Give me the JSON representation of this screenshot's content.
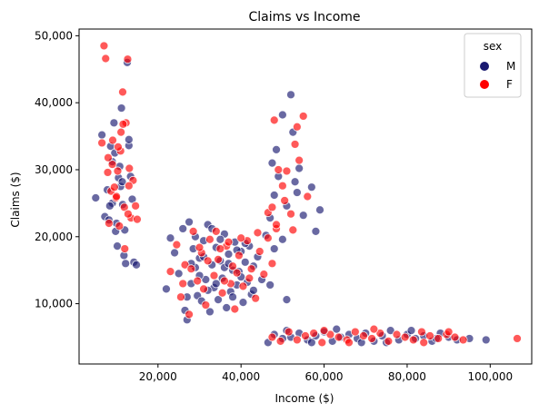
{
  "chart_data": {
    "type": "scatter",
    "title": "Claims vs Income",
    "xlabel": "Income ($)",
    "ylabel": "Claims ($)",
    "xlim": [
      1000,
      110000
    ],
    "ylim": [
      1000,
      51000
    ],
    "xticks": [
      20000,
      40000,
      60000,
      80000,
      100000
    ],
    "yticks": [
      10000,
      20000,
      30000,
      40000,
      50000
    ],
    "xtick_labels": [
      "20,000",
      "40,000",
      "60,000",
      "80,000",
      "100,000"
    ],
    "ytick_labels": [
      "10,000",
      "20,000",
      "30,000",
      "40,000",
      "50,000"
    ],
    "grid": false,
    "legend": {
      "title": "sex",
      "placement": "top-right"
    },
    "series": [
      {
        "name": "M",
        "color": "#191970",
        "points": [
          [
            5000,
            25800
          ],
          [
            6500,
            35200
          ],
          [
            7200,
            23000
          ],
          [
            7800,
            27000
          ],
          [
            8200,
            22500
          ],
          [
            8600,
            33500
          ],
          [
            9000,
            31200
          ],
          [
            9400,
            37000
          ],
          [
            9800,
            20800
          ],
          [
            10200,
            18600
          ],
          [
            10500,
            28800
          ],
          [
            10800,
            30500
          ],
          [
            11200,
            39200
          ],
          [
            11500,
            24800
          ],
          [
            11800,
            17200
          ],
          [
            12200,
            16000
          ],
          [
            12600,
            46000
          ],
          [
            13000,
            33600
          ],
          [
            13400,
            29000
          ],
          [
            13800,
            25600
          ],
          [
            14200,
            16200
          ],
          [
            14800,
            15800
          ],
          [
            9000,
            25000
          ],
          [
            10000,
            22000
          ],
          [
            11000,
            27500
          ],
          [
            12000,
            21000
          ],
          [
            13000,
            34500
          ],
          [
            9600,
            32500
          ],
          [
            11400,
            28200
          ],
          [
            8400,
            24600
          ],
          [
            22000,
            12200
          ],
          [
            23000,
            19800
          ],
          [
            24000,
            17600
          ],
          [
            25000,
            14500
          ],
          [
            26000,
            21200
          ],
          [
            26500,
            9000
          ],
          [
            27000,
            7600
          ],
          [
            27500,
            22200
          ],
          [
            28000,
            13000
          ],
          [
            28500,
            18200
          ],
          [
            29000,
            15400
          ],
          [
            29500,
            11200
          ],
          [
            30000,
            16800
          ],
          [
            30500,
            10400
          ],
          [
            31000,
            19400
          ],
          [
            31500,
            13600
          ],
          [
            32000,
            21800
          ],
          [
            32500,
            8800
          ],
          [
            33000,
            15800
          ],
          [
            33500,
            12400
          ],
          [
            34000,
            18400
          ],
          [
            34500,
            10600
          ],
          [
            35000,
            16400
          ],
          [
            35500,
            13800
          ],
          [
            36000,
            20400
          ],
          [
            36500,
            9400
          ],
          [
            37000,
            17400
          ],
          [
            37500,
            11800
          ],
          [
            38000,
            15000
          ],
          [
            38500,
            19200
          ],
          [
            39000,
            12800
          ],
          [
            39500,
            14800
          ],
          [
            40000,
            17800
          ],
          [
            40500,
            10200
          ],
          [
            41000,
            16200
          ],
          [
            41500,
            13200
          ],
          [
            42000,
            18600
          ],
          [
            42500,
            11400
          ],
          [
            43000,
            15600
          ],
          [
            44000,
            17000
          ],
          [
            45000,
            13600
          ],
          [
            46000,
            20200
          ],
          [
            47000,
            12800
          ],
          [
            48000,
            18200
          ],
          [
            33000,
            21200
          ],
          [
            35000,
            19600
          ],
          [
            30000,
            14200
          ],
          [
            36000,
            15400
          ],
          [
            38000,
            11000
          ],
          [
            31000,
            17000
          ],
          [
            34000,
            13000
          ],
          [
            37000,
            16000
          ],
          [
            39000,
            18000
          ],
          [
            32000,
            12000
          ],
          [
            40000,
            14000
          ],
          [
            28000,
            16000
          ],
          [
            43000,
            12000
          ],
          [
            29000,
            20000
          ],
          [
            41000,
            19000
          ],
          [
            27000,
            11000
          ],
          [
            46500,
            4200
          ],
          [
            48000,
            5400
          ],
          [
            50000,
            4800
          ],
          [
            52000,
            5000
          ],
          [
            54000,
            5600
          ],
          [
            56000,
            4600
          ],
          [
            58000,
            5200
          ],
          [
            60000,
            5800
          ],
          [
            62000,
            4400
          ],
          [
            64000,
            5000
          ],
          [
            66000,
            5400
          ],
          [
            68000,
            4800
          ],
          [
            70000,
            5600
          ],
          [
            72000,
            4400
          ],
          [
            74000,
            5200
          ],
          [
            76000,
            6000
          ],
          [
            78000,
            4600
          ],
          [
            80000,
            5400
          ],
          [
            82000,
            4800
          ],
          [
            84000,
            5200
          ],
          [
            86000,
            4400
          ],
          [
            88000,
            5600
          ],
          [
            90000,
            5000
          ],
          [
            92000,
            4600
          ],
          [
            95000,
            4800
          ],
          [
            99000,
            4600
          ],
          [
            51000,
            6000
          ],
          [
            57000,
            4200
          ],
          [
            63000,
            6200
          ],
          [
            69000,
            4200
          ],
          [
            75000,
            4200
          ],
          [
            81000,
            6000
          ],
          [
            87000,
            4800
          ],
          [
            47000,
            22800
          ],
          [
            48000,
            26200
          ],
          [
            49000,
            29000
          ],
          [
            50000,
            38200
          ],
          [
            51000,
            24600
          ],
          [
            52000,
            41200
          ],
          [
            53000,
            28200
          ],
          [
            54000,
            30200
          ],
          [
            55000,
            23200
          ],
          [
            57000,
            27400
          ],
          [
            58000,
            20800
          ],
          [
            59000,
            24000
          ],
          [
            51000,
            10600
          ],
          [
            50000,
            19600
          ],
          [
            48500,
            33000
          ],
          [
            52500,
            35600
          ],
          [
            53500,
            26600
          ],
          [
            47500,
            31000
          ]
        ]
      },
      {
        "name": "F",
        "color": "#ff0000",
        "points": [
          [
            6500,
            34000
          ],
          [
            7000,
            48500
          ],
          [
            7400,
            46600
          ],
          [
            7900,
            29600
          ],
          [
            8200,
            22000
          ],
          [
            8700,
            26800
          ],
          [
            9100,
            34400
          ],
          [
            9500,
            27400
          ],
          [
            9900,
            25800
          ],
          [
            10300,
            29800
          ],
          [
            10700,
            21600
          ],
          [
            11100,
            35600
          ],
          [
            11500,
            41600
          ],
          [
            11900,
            24400
          ],
          [
            12300,
            37000
          ],
          [
            12700,
            46500
          ],
          [
            13100,
            30200
          ],
          [
            13500,
            22800
          ],
          [
            14000,
            28400
          ],
          [
            14600,
            24600
          ],
          [
            15000,
            22600
          ],
          [
            9000,
            30800
          ],
          [
            10000,
            26000
          ],
          [
            11000,
            32800
          ],
          [
            12000,
            18200
          ],
          [
            13000,
            27600
          ],
          [
            8000,
            31800
          ],
          [
            11600,
            36800
          ],
          [
            10400,
            33400
          ],
          [
            12800,
            23400
          ],
          [
            23000,
            14800
          ],
          [
            24500,
            18800
          ],
          [
            25500,
            11000
          ],
          [
            26500,
            15800
          ],
          [
            27500,
            8400
          ],
          [
            28500,
            20800
          ],
          [
            29500,
            13400
          ],
          [
            30500,
            17600
          ],
          [
            31500,
            9800
          ],
          [
            32500,
            19600
          ],
          [
            33500,
            14200
          ],
          [
            34500,
            16600
          ],
          [
            35500,
            11600
          ],
          [
            36500,
            18600
          ],
          [
            37500,
            13000
          ],
          [
            38500,
            9200
          ],
          [
            39500,
            17200
          ],
          [
            40500,
            12600
          ],
          [
            41500,
            19400
          ],
          [
            42500,
            15200
          ],
          [
            43500,
            10800
          ],
          [
            44500,
            17800
          ],
          [
            45500,
            14400
          ],
          [
            46500,
            19800
          ],
          [
            47500,
            16000
          ],
          [
            48500,
            21200
          ],
          [
            30000,
            18400
          ],
          [
            34000,
            20800
          ],
          [
            38000,
            15600
          ],
          [
            42000,
            13800
          ],
          [
            26000,
            13000
          ],
          [
            36000,
            13400
          ],
          [
            32000,
            16400
          ],
          [
            40000,
            19800
          ],
          [
            28000,
            15200
          ],
          [
            44000,
            20600
          ],
          [
            31000,
            12200
          ],
          [
            37000,
            19200
          ],
          [
            39000,
            14600
          ],
          [
            35000,
            18200
          ],
          [
            47500,
            5000
          ],
          [
            49500,
            4400
          ],
          [
            51500,
            5800
          ],
          [
            53500,
            4600
          ],
          [
            55500,
            5200
          ],
          [
            57500,
            5600
          ],
          [
            59500,
            4200
          ],
          [
            61500,
            5400
          ],
          [
            63500,
            5000
          ],
          [
            65500,
            4600
          ],
          [
            67500,
            5800
          ],
          [
            69500,
            5200
          ],
          [
            71500,
            4800
          ],
          [
            73500,
            5600
          ],
          [
            75500,
            4400
          ],
          [
            77500,
            5400
          ],
          [
            79500,
            5000
          ],
          [
            81500,
            4600
          ],
          [
            83500,
            5800
          ],
          [
            85500,
            5200
          ],
          [
            87500,
            4800
          ],
          [
            89500,
            5400
          ],
          [
            91500,
            5000
          ],
          [
            93500,
            4600
          ],
          [
            106500,
            4800
          ],
          [
            60000,
            6000
          ],
          [
            72000,
            6200
          ],
          [
            84000,
            4200
          ],
          [
            90000,
            5800
          ],
          [
            66000,
            4200
          ],
          [
            46500,
            23600
          ],
          [
            47500,
            24400
          ],
          [
            48000,
            37400
          ],
          [
            49000,
            30000
          ],
          [
            50000,
            27600
          ],
          [
            51000,
            29800
          ],
          [
            52000,
            23400
          ],
          [
            53000,
            33800
          ],
          [
            54000,
            31400
          ],
          [
            55000,
            38000
          ],
          [
            56000,
            26000
          ],
          [
            48500,
            21800
          ],
          [
            50500,
            25400
          ],
          [
            52500,
            21000
          ],
          [
            53500,
            36400
          ]
        ]
      }
    ]
  }
}
